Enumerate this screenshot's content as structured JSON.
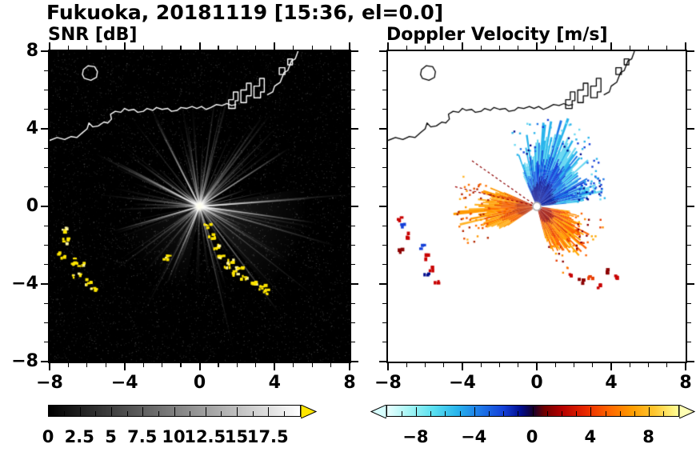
{
  "header": {
    "title": "Fukuoka, 20181119 [15:36, el=0.0]"
  },
  "chart_data": [
    {
      "type": "heatmap",
      "title": "SNR [dB]",
      "xlim": [
        -8,
        8
      ],
      "ylim": [
        -8,
        8
      ],
      "xticks": [
        -8,
        -4,
        0,
        4,
        8
      ],
      "yticks": [
        8,
        4,
        0,
        -4,
        -8
      ],
      "minor_step": 1,
      "background": "#000000",
      "radar_center": [
        0,
        0
      ],
      "features": {
        "clutter_arc_yellow": [
          [
            0.35,
            -0.95
          ],
          [
            0.6,
            -1.5
          ],
          [
            0.85,
            -2.05
          ],
          [
            1.1,
            -2.55
          ],
          [
            1.45,
            -3.0
          ],
          [
            1.6,
            -2.75
          ],
          [
            1.85,
            -3.35
          ],
          [
            2.05,
            -3.05
          ],
          [
            2.3,
            -3.65
          ],
          [
            2.8,
            -3.85
          ],
          [
            3.25,
            -4.1
          ],
          [
            3.5,
            -4.35
          ]
        ],
        "clutter_blobs_yellow": [
          [
            -7.35,
            -1.15
          ],
          [
            -7.15,
            -1.75
          ],
          [
            -7.45,
            -2.45
          ],
          [
            -6.9,
            -2.8
          ],
          [
            -6.35,
            -3.0
          ],
          [
            -6.6,
            -3.5
          ],
          [
            -6.05,
            -3.85
          ],
          [
            -5.75,
            -4.15
          ],
          [
            -1.85,
            -2.6
          ]
        ],
        "bright_rays_deg": [
          -28,
          -8,
          4,
          33,
          117,
          152,
          196,
          247
        ]
      },
      "colorbar": {
        "range": [
          0,
          20
        ],
        "tick_labels": [
          "0",
          "2.5",
          "5",
          "7.5",
          "10",
          "12.5",
          "15",
          "17.5"
        ],
        "tick_values": [
          0,
          2.5,
          5,
          7.5,
          10,
          12.5,
          15,
          17.5
        ],
        "minor_step": 1.25,
        "gradient": [
          "#000000 0%",
          "#ffffff 100%"
        ],
        "arrow_right": "#ffe600"
      }
    },
    {
      "type": "heatmap",
      "title": "Doppler Velocity [m/s]",
      "xlim": [
        -8,
        8
      ],
      "ylim": [
        -8,
        8
      ],
      "xticks": [
        -8,
        -4,
        0,
        4,
        8
      ],
      "yticks": [
        8,
        4,
        0,
        -4,
        -8
      ],
      "minor_step": 1,
      "background": "#ffffff",
      "radar_center": [
        0,
        0
      ],
      "fans": [
        {
          "name": "toward-north",
          "a0": 20,
          "a1": 114,
          "rmin": 1.3,
          "rmax": 3.9,
          "palette": [
            "#000c8c",
            "#1440d8",
            "#1e78e8",
            "#28b4ec",
            "#6ad8f2"
          ]
        },
        {
          "name": "toward-east-patch",
          "a0": 6,
          "a1": 26,
          "rmin": 2.1,
          "rmax": 3.1,
          "palette": [
            "#000c8c",
            "#1e78e8",
            "#28b4ec",
            "#1440d8",
            "#6ad8f2"
          ]
        },
        {
          "name": "away-west",
          "a0": 158,
          "a1": 212,
          "rmin": 1.4,
          "rmax": 3.6,
          "palette": [
            "#b42800",
            "#e85000",
            "#ff7300",
            "#ff9a00",
            "#ffb428"
          ]
        },
        {
          "name": "away-southeast",
          "a0": 286,
          "a1": 352,
          "rmin": 1.2,
          "rmax": 3.1,
          "palette": [
            "#8c0000",
            "#e83c00",
            "#ff8c00",
            "#ffa800",
            "#ff6400"
          ]
        }
      ],
      "thin_rays": [
        {
          "angle_deg": 146,
          "r": 4.2,
          "color": "#8c0000"
        },
        {
          "angle_deg": 167,
          "r": 4.6,
          "color": "#a00000"
        }
      ],
      "specks": [
        [
          -7.4,
          -0.7,
          "#c80000"
        ],
        [
          -7.15,
          -1.05,
          "#1440d8"
        ],
        [
          -6.9,
          -1.5,
          "#c80000"
        ],
        [
          -7.3,
          -2.3,
          "#8c0000"
        ],
        [
          -6.15,
          -2.1,
          "#1440d8"
        ],
        [
          -5.85,
          -2.6,
          "#c80000"
        ],
        [
          -5.6,
          -3.2,
          "#c80000"
        ],
        [
          -5.9,
          -3.6,
          "#000c8c"
        ],
        [
          -5.35,
          -3.95,
          "#c80000"
        ],
        [
          1.9,
          -3.5,
          "#c80000"
        ],
        [
          2.4,
          -3.85,
          "#8c0000"
        ],
        [
          2.9,
          -3.6,
          "#e83c00"
        ],
        [
          3.4,
          -4.15,
          "#c80000"
        ],
        [
          3.9,
          -3.35,
          "#8c0000"
        ],
        [
          4.3,
          -3.65,
          "#c80000"
        ]
      ],
      "colorbar": {
        "range": [
          -10,
          10
        ],
        "tick_labels": [
          "−8",
          "−4",
          "0",
          "4",
          "8"
        ],
        "tick_values": [
          -8,
          -4,
          0,
          4,
          8
        ],
        "minor_step": 1,
        "gradient": [
          "#e8ffff 0%",
          "#a0f4f4 8%",
          "#58dff0 16%",
          "#28b4ec 24%",
          "#1e78e8 32%",
          "#1440d8 40%",
          "#000c8c 46%",
          "#14002e 50%",
          "#700000 54%",
          "#b40000 60%",
          "#e82800 68%",
          "#ff6400 76%",
          "#ff9c00 84%",
          "#ffc832 92%",
          "#ffff96 100%"
        ],
        "arrow_left": "#d8ffff",
        "arrow_right": "#ffffb4"
      }
    }
  ],
  "map_overlay": {
    "coastline": [
      [
        -8,
        3.4
      ],
      [
        -7.6,
        3.55
      ],
      [
        -7.2,
        3.45
      ],
      [
        -6.85,
        3.6
      ],
      [
        -6.55,
        3.55
      ],
      [
        -6.25,
        3.8
      ],
      [
        -6.0,
        4.0
      ],
      [
        -5.9,
        4.3
      ],
      [
        -5.7,
        4.1
      ],
      [
        -5.4,
        4.15
      ],
      [
        -5.1,
        4.35
      ],
      [
        -4.9,
        4.3
      ],
      [
        -4.7,
        4.5
      ],
      [
        -4.75,
        4.75
      ],
      [
        -4.5,
        4.9
      ],
      [
        -4.2,
        4.85
      ],
      [
        -4.0,
        5.05
      ],
      [
        -3.8,
        4.95
      ],
      [
        -3.5,
        5.0
      ],
      [
        -3.3,
        4.85
      ],
      [
        -3.0,
        4.9
      ],
      [
        -2.8,
        5.05
      ],
      [
        -2.5,
        4.95
      ],
      [
        -2.3,
        5.1
      ],
      [
        -2.0,
        5.0
      ],
      [
        -1.7,
        5.05
      ],
      [
        -1.5,
        4.9
      ],
      [
        -1.2,
        4.95
      ],
      [
        -1.0,
        5.1
      ],
      [
        -0.7,
        5.05
      ],
      [
        -0.4,
        5.15
      ],
      [
        -0.15,
        5.05
      ],
      [
        0.1,
        5.15
      ],
      [
        0.35,
        5.0
      ],
      [
        0.6,
        5.1
      ],
      [
        0.9,
        5.25
      ],
      [
        1.2,
        5.2
      ],
      [
        1.45,
        5.3
      ],
      [
        1.7,
        5.2
      ],
      [
        1.95,
        5.25
      ]
    ],
    "coast_right": [
      [
        3.6,
        5.75
      ],
      [
        3.9,
        5.9
      ],
      [
        4.0,
        6.2
      ],
      [
        4.3,
        6.4
      ],
      [
        4.5,
        6.9
      ],
      [
        4.7,
        7.0
      ],
      [
        4.9,
        7.5
      ],
      [
        5.1,
        7.6
      ],
      [
        5.25,
        8.0
      ]
    ],
    "island": [
      [
        -6.15,
        6.6
      ],
      [
        -5.8,
        6.5
      ],
      [
        -5.5,
        6.65
      ],
      [
        -5.45,
        6.95
      ],
      [
        -5.6,
        7.2
      ],
      [
        -5.95,
        7.25
      ],
      [
        -6.2,
        7.05
      ],
      [
        -6.25,
        6.8
      ]
    ],
    "piers": [
      [
        [
          1.55,
          5.05
        ],
        [
          1.55,
          5.5
        ],
        [
          1.8,
          5.5
        ],
        [
          1.8,
          5.9
        ],
        [
          2.05,
          5.9
        ],
        [
          2.05,
          5.45
        ],
        [
          1.9,
          5.45
        ],
        [
          1.9,
          5.05
        ]
      ],
      [
        [
          2.2,
          5.35
        ],
        [
          2.2,
          6.0
        ],
        [
          2.5,
          6.0
        ],
        [
          2.5,
          6.35
        ],
        [
          2.75,
          6.35
        ],
        [
          2.75,
          5.7
        ],
        [
          2.5,
          5.7
        ],
        [
          2.5,
          5.35
        ]
      ],
      [
        [
          2.9,
          5.6
        ],
        [
          2.9,
          6.2
        ],
        [
          3.2,
          6.2
        ],
        [
          3.2,
          6.6
        ],
        [
          3.45,
          6.6
        ],
        [
          3.45,
          5.9
        ],
        [
          3.25,
          5.9
        ],
        [
          3.25,
          5.6
        ]
      ],
      [
        [
          4.25,
          6.8
        ],
        [
          4.25,
          7.15
        ],
        [
          4.55,
          7.15
        ],
        [
          4.55,
          6.8
        ]
      ],
      [
        [
          4.7,
          7.3
        ],
        [
          4.95,
          7.3
        ],
        [
          4.95,
          7.6
        ],
        [
          4.7,
          7.6
        ]
      ]
    ]
  }
}
